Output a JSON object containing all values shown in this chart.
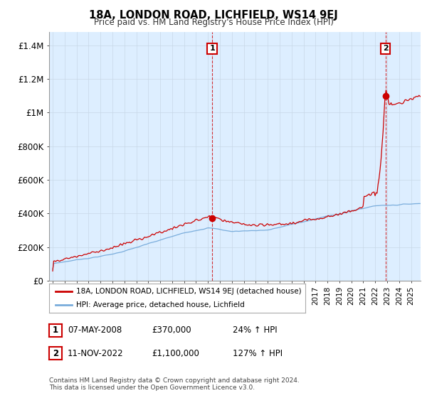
{
  "title": "18A, LONDON ROAD, LICHFIELD, WS14 9EJ",
  "subtitle": "Price paid vs. HM Land Registry's House Price Index (HPI)",
  "ylabel_ticks": [
    "£0",
    "£200K",
    "£400K",
    "£600K",
    "£800K",
    "£1M",
    "£1.2M",
    "£1.4M"
  ],
  "ytick_vals": [
    0,
    200000,
    400000,
    600000,
    800000,
    1000000,
    1200000,
    1400000
  ],
  "ylim": [
    0,
    1480000
  ],
  "hpi_color": "#7aaddc",
  "price_color": "#cc0000",
  "plot_bg_color": "#ddeeff",
  "sale1_date_num": 2008.35,
  "sale1_price": 370000,
  "sale1_label": "1",
  "sale2_date_num": 2022.86,
  "sale2_price": 1100000,
  "sale2_label": "2",
  "legend_line1": "18A, LONDON ROAD, LICHFIELD, WS14 9EJ (detached house)",
  "legend_line2": "HPI: Average price, detached house, Lichfield",
  "table_rows": [
    [
      "1",
      "07-MAY-2008",
      "£370,000",
      "24% ↑ HPI"
    ],
    [
      "2",
      "11-NOV-2022",
      "£1,100,000",
      "127% ↑ HPI"
    ]
  ],
  "footer": "Contains HM Land Registry data © Crown copyright and database right 2024.\nThis data is licensed under the Open Government Licence v3.0.",
  "background_color": "#ffffff",
  "grid_color": "#c8d8e8"
}
